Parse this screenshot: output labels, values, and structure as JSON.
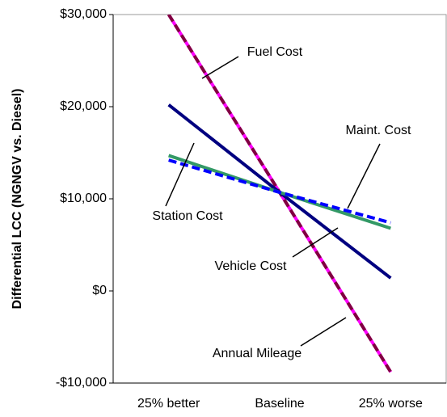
{
  "chart_data": {
    "type": "line",
    "y_label": "Differential LCC (NGNGV vs. Diesel)",
    "categories": [
      "25% better",
      "Baseline",
      "25% worse"
    ],
    "series": [
      {
        "name": "Fuel Cost",
        "color": "#800040",
        "dashed": true,
        "values": [
          30000,
          10700,
          -8800
        ]
      },
      {
        "name": "Annual Mileage",
        "color": "#ff00ff",
        "values": [
          30000,
          10700,
          -8800
        ]
      },
      {
        "name": "Vehicle Cost",
        "color": "#000080",
        "values": [
          20200,
          10700,
          1400
        ]
      },
      {
        "name": "Maint. Cost",
        "color": "#339966",
        "values": [
          14700,
          10700,
          6800
        ]
      },
      {
        "name": "Station Cost",
        "color": "#0000ff",
        "dashed": true,
        "values": [
          14200,
          10700,
          7400
        ]
      }
    ],
    "ylim": [
      -10000,
      30000
    ],
    "yticks": [
      {
        "value": -10000,
        "label": "-$10,000"
      },
      {
        "value": 0,
        "label": "$0"
      },
      {
        "value": 10000,
        "label": "$10,000"
      },
      {
        "value": 20000,
        "label": "$20,000"
      },
      {
        "value": 30000,
        "label": "$30,000"
      }
    ],
    "grid": false
  }
}
